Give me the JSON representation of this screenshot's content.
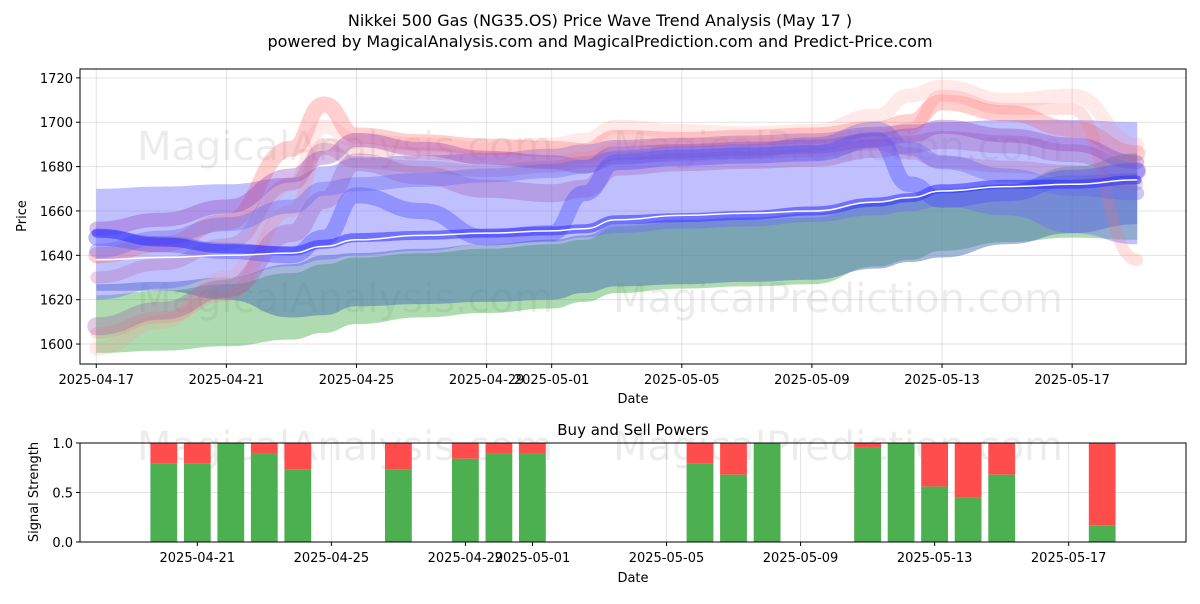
{
  "title_line1": "Nikkei 500 Gas (NG35.OS) Price Wave Trend Analysis (May 17 )",
  "title_line2": "powered by MagicalAnalysis.com and MagicalPrediction.com and Predict-Price.com",
  "watermarks": [
    "MagicalAnalysis.com",
    "MagicalPrediction.com"
  ],
  "chart_data": [
    {
      "type": "area",
      "name": "price-wave",
      "xlabel": "Date",
      "ylabel": "Price",
      "ylim": [
        1591,
        1724
      ],
      "x_range": [
        "2025-04-16.5",
        "2025-05-20.5"
      ],
      "yticks": [
        1600,
        1620,
        1640,
        1660,
        1680,
        1700,
        1720
      ],
      "xticks": [
        {
          "date": "2025-04-17",
          "label": "2025-04-17"
        },
        {
          "date": "2025-04-21",
          "label": "2025-04-21"
        },
        {
          "date": "2025-04-25",
          "label": "2025-04-25"
        },
        {
          "date": "2025-04-29",
          "label": "2025-04-29"
        },
        {
          "date": "2025-05-01",
          "label": "2025-05-01"
        },
        {
          "date": "2025-05-05",
          "label": "2025-05-05"
        },
        {
          "date": "2025-05-09",
          "label": "2025-05-09"
        },
        {
          "date": "2025-05-13",
          "label": "2025-05-13"
        },
        {
          "date": "2025-05-17",
          "label": "2025-05-17"
        }
      ],
      "grid": true,
      "x_days": [
        0,
        2,
        4,
        6,
        7,
        8,
        10,
        12,
        14,
        15,
        16,
        18,
        20,
        22,
        24,
        25,
        26,
        28,
        30,
        32
      ],
      "bands": [
        {
          "name": "green-band",
          "color": "#4caf50",
          "opacity": 0.45,
          "lower": [
            1596,
            1597,
            1599,
            1602,
            1605,
            1609,
            1612,
            1614,
            1616,
            1619,
            1623,
            1625,
            1626,
            1627,
            1635,
            1638,
            1642,
            1646,
            1648,
            1647
          ],
          "upper": [
            1622,
            1624,
            1627,
            1632,
            1636,
            1639,
            1641,
            1643,
            1645,
            1647,
            1653,
            1655,
            1656,
            1657,
            1664,
            1666,
            1670,
            1672,
            1680,
            1686
          ]
        },
        {
          "name": "steelblue-band",
          "color": "#4a6fb5",
          "opacity": 0.5,
          "lower": [
            1624,
            1624,
            1620,
            1612,
            1613,
            1617,
            1618,
            1619,
            1620,
            1623,
            1626,
            1627,
            1628,
            1629,
            1634,
            1637,
            1639,
            1645,
            1650,
            1654
          ],
          "upper": [
            1627,
            1628,
            1630,
            1636,
            1640,
            1641,
            1643,
            1645,
            1647,
            1649,
            1654,
            1656,
            1657,
            1659,
            1664,
            1666,
            1669,
            1672,
            1676,
            1677
          ]
        },
        {
          "name": "blue-wide-band",
          "color": "#6a6aff",
          "opacity": 0.42,
          "lower": [
            1620,
            1625,
            1630,
            1635,
            1638,
            1640,
            1642,
            1645,
            1646,
            1648,
            1650,
            1652,
            1653,
            1655,
            1658,
            1660,
            1662,
            1658,
            1650,
            1645
          ],
          "upper": [
            1670,
            1671,
            1672,
            1675,
            1680,
            1684,
            1685,
            1686,
            1688,
            1690,
            1692,
            1693,
            1694,
            1695,
            1698,
            1699,
            1700,
            1701,
            1701,
            1700
          ]
        }
      ],
      "wave_lines": [
        {
          "name": "red-wave-1",
          "color": "#ff5050",
          "opacity": 0.28,
          "width": 16,
          "values": [
            1640,
            1645,
            1655,
            1688,
            1708,
            1694,
            1691,
            1689,
            1688,
            1687,
            1693,
            1692,
            1693,
            1694,
            1697,
            1700,
            1709,
            1704,
            1697,
            1686
          ]
        },
        {
          "name": "red-wave-2",
          "color": "#ff7070",
          "opacity": 0.22,
          "width": 12,
          "values": [
            1605,
            1612,
            1622,
            1660,
            1690,
            1688,
            1686,
            1684,
            1682,
            1684,
            1688,
            1690,
            1690,
            1691,
            1694,
            1697,
            1712,
            1706,
            1706,
            1638
          ]
        },
        {
          "name": "red-wave-3",
          "color": "#ff9090",
          "opacity": 0.2,
          "width": 14,
          "values": [
            1598,
            1610,
            1630,
            1672,
            1698,
            1692,
            1690,
            1688,
            1690,
            1692,
            1698,
            1696,
            1695,
            1696,
            1703,
            1712,
            1716,
            1710,
            1712,
            1690
          ]
        },
        {
          "name": "purple-wave-1",
          "color": "#9040c0",
          "opacity": 0.35,
          "width": 14,
          "values": [
            1652,
            1656,
            1662,
            1676,
            1684,
            1692,
            1688,
            1684,
            1682,
            1680,
            1686,
            1687,
            1688,
            1689,
            1692,
            1694,
            1698,
            1694,
            1690,
            1682
          ]
        },
        {
          "name": "purple-wave-2",
          "color": "#a050b0",
          "opacity": 0.3,
          "width": 18,
          "values": [
            1608,
            1615,
            1625,
            1650,
            1665,
            1682,
            1676,
            1670,
            1668,
            1670,
            1680,
            1682,
            1683,
            1684,
            1688,
            1690,
            1692,
            1690,
            1686,
            1678
          ]
        },
        {
          "name": "purple-wave-3",
          "color": "#b060a0",
          "opacity": 0.28,
          "width": 12,
          "values": [
            1630,
            1636,
            1645,
            1672,
            1688,
            1682,
            1680,
            1678,
            1680,
            1682,
            1684,
            1685,
            1686,
            1687,
            1690,
            1686,
            1682,
            1680,
            1678,
            1672
          ]
        },
        {
          "name": "blue-wave-1",
          "color": "#5050ff",
          "opacity": 0.4,
          "width": 16,
          "values": [
            1648,
            1645,
            1642,
            1640,
            1648,
            1667,
            1660,
            1648,
            1650,
            1668,
            1682,
            1684,
            1685,
            1686,
            1692,
            1672,
            1665,
            1668,
            1675,
            1678
          ]
        },
        {
          "name": "blue-wave-2",
          "color": "#6060f0",
          "opacity": 0.35,
          "width": 14,
          "values": [
            1642,
            1648,
            1654,
            1662,
            1670,
            1672,
            1674,
            1676,
            1678,
            1680,
            1684,
            1686,
            1687,
            1690,
            1697,
            1688,
            1682,
            1676,
            1670,
            1668
          ]
        },
        {
          "name": "blue-line",
          "color": "#3030ff",
          "opacity": 0.55,
          "width": 9,
          "values": [
            1650,
            1646,
            1643,
            1642,
            1645,
            1648,
            1649,
            1650,
            1651,
            1652,
            1656,
            1657,
            1658,
            1660,
            1664,
            1666,
            1670,
            1672,
            1672,
            1674
          ]
        }
      ],
      "center_line": {
        "name": "median-line",
        "color": "#ffffff",
        "values": [
          1638,
          1639,
          1640,
          1641,
          1644,
          1647,
          1649,
          1650,
          1651,
          1652,
          1656,
          1658,
          1659,
          1660,
          1664,
          1666,
          1669,
          1671,
          1672,
          1674
        ]
      }
    },
    {
      "type": "bar",
      "name": "buy-sell-powers",
      "title": "Buy and Sell Powers",
      "xlabel": "Date",
      "ylabel": "Signal Strength",
      "ylim": [
        0,
        1
      ],
      "yticks": [
        {
          "v": 0,
          "label": "0.0"
        },
        {
          "v": 0.5,
          "label": "0.5"
        },
        {
          "v": 1,
          "label": "1.0"
        }
      ],
      "x_range": [
        "2025-04-17.5",
        "2025-05-20.5"
      ],
      "xticks": [
        {
          "date": "2025-04-21",
          "label": "2025-04-21"
        },
        {
          "date": "2025-04-25",
          "label": "2025-04-25"
        },
        {
          "date": "2025-04-29",
          "label": "2025-04-29"
        },
        {
          "date": "2025-05-01",
          "label": "2025-05-01"
        },
        {
          "date": "2025-05-05",
          "label": "2025-05-05"
        },
        {
          "date": "2025-05-09",
          "label": "2025-05-09"
        },
        {
          "date": "2025-05-13",
          "label": "2025-05-13"
        },
        {
          "date": "2025-05-17",
          "label": "2025-05-17"
        }
      ],
      "grid": true,
      "buy_color": "#4caf50",
      "sell_color": "#ff4d4d",
      "series": [
        {
          "date": "2025-04-20",
          "buy": 0.79
        },
        {
          "date": "2025-04-21",
          "buy": 0.79
        },
        {
          "date": "2025-04-22",
          "buy": 1.0
        },
        {
          "date": "2025-04-23",
          "buy": 0.89
        },
        {
          "date": "2025-04-24",
          "buy": 0.73
        },
        {
          "date": "2025-04-27",
          "buy": 0.73
        },
        {
          "date": "2025-04-29",
          "buy": 0.84
        },
        {
          "date": "2025-04-30",
          "buy": 0.89
        },
        {
          "date": "2025-05-01",
          "buy": 0.89
        },
        {
          "date": "2025-05-06",
          "buy": 0.79
        },
        {
          "date": "2025-05-07",
          "buy": 0.68
        },
        {
          "date": "2025-05-08",
          "buy": 1.0
        },
        {
          "date": "2025-05-11",
          "buy": 0.95
        },
        {
          "date": "2025-05-12",
          "buy": 1.0
        },
        {
          "date": "2025-05-13",
          "buy": 0.56
        },
        {
          "date": "2025-05-14",
          "buy": 0.45
        },
        {
          "date": "2025-05-15",
          "buy": 0.68
        },
        {
          "date": "2025-05-18",
          "buy": 0.17
        }
      ]
    }
  ]
}
